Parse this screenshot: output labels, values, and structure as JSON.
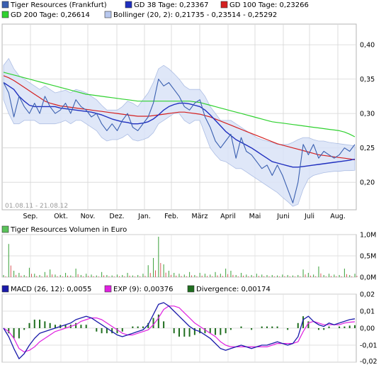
{
  "chart_data": [
    {
      "type": "line",
      "legend": [
        {
          "label": "Tiger Resources (Frankfurt)",
          "color": "#3a5fb0"
        },
        {
          "label": "GD 38 Tage: 0,23367",
          "color": "#1f2fbf"
        },
        {
          "label": "GD 100 Tage: 0,23266",
          "color": "#d42020"
        },
        {
          "label": "GD 200 Tage: 0,26614",
          "color": "#2fd12f"
        },
        {
          "label": "Bollinger (20, 2): 0,21735 - 0,23514 - 0,25292",
          "color": "#b8c8ee"
        }
      ],
      "date_range": "01.08.11 - 21.08.12",
      "x_ticks": [
        "Sep.",
        "Okt.",
        "Nov.",
        "Dez.",
        "Jan.",
        "Feb.",
        "März",
        "April",
        "Mai",
        "Juni",
        "Juli",
        "Aug."
      ],
      "y_ticks": [
        "0,20",
        "0,25",
        "0,30",
        "0,35",
        "0,40"
      ],
      "ylim": [
        0.16,
        0.43
      ],
      "series": [
        {
          "name": "Tiger Resources (Frankfurt)",
          "color": "#3a5fb0",
          "values": [
            0.345,
            0.33,
            0.295,
            0.325,
            0.31,
            0.3,
            0.315,
            0.3,
            0.325,
            0.31,
            0.3,
            0.305,
            0.315,
            0.3,
            0.32,
            0.31,
            0.305,
            0.295,
            0.3,
            0.285,
            0.275,
            0.285,
            0.275,
            0.29,
            0.3,
            0.28,
            0.275,
            0.285,
            0.295,
            0.315,
            0.35,
            0.34,
            0.345,
            0.335,
            0.325,
            0.31,
            0.305,
            0.315,
            0.32,
            0.295,
            0.28,
            0.26,
            0.25,
            0.26,
            0.27,
            0.235,
            0.265,
            0.245,
            0.24,
            0.23,
            0.22,
            0.225,
            0.21,
            0.225,
            0.21,
            0.19,
            0.17,
            0.2,
            0.255,
            0.24,
            0.255,
            0.235,
            0.245,
            0.24,
            0.235,
            0.24,
            0.25,
            0.245,
            0.255
          ]
        },
        {
          "name": "GD 38 Tage",
          "color": "#1f2fbf",
          "values": [
            0.345,
            0.34,
            0.335,
            0.325,
            0.318,
            0.312,
            0.31,
            0.31,
            0.31,
            0.31,
            0.31,
            0.308,
            0.307,
            0.306,
            0.305,
            0.304,
            0.303,
            0.302,
            0.3,
            0.298,
            0.295,
            0.292,
            0.29,
            0.288,
            0.287,
            0.285,
            0.285,
            0.286,
            0.288,
            0.292,
            0.298,
            0.305,
            0.31,
            0.313,
            0.315,
            0.315,
            0.314,
            0.312,
            0.31,
            0.305,
            0.298,
            0.29,
            0.282,
            0.274,
            0.268,
            0.262,
            0.258,
            0.254,
            0.25,
            0.245,
            0.24,
            0.235,
            0.23,
            0.228,
            0.226,
            0.224,
            0.222,
            0.222,
            0.223,
            0.224,
            0.225,
            0.226,
            0.227,
            0.228,
            0.229,
            0.23,
            0.231,
            0.232,
            0.2337
          ]
        },
        {
          "name": "GD 100 Tage",
          "color": "#d42020",
          "values": [
            0.355,
            0.352,
            0.348,
            0.343,
            0.338,
            0.333,
            0.328,
            0.323,
            0.318,
            0.315,
            0.313,
            0.311,
            0.31,
            0.309,
            0.308,
            0.307,
            0.306,
            0.305,
            0.304,
            0.303,
            0.302,
            0.301,
            0.3,
            0.299,
            0.298,
            0.297,
            0.296,
            0.296,
            0.296,
            0.297,
            0.298,
            0.299,
            0.3,
            0.301,
            0.302,
            0.302,
            0.301,
            0.3,
            0.299,
            0.297,
            0.295,
            0.292,
            0.289,
            0.286,
            0.283,
            0.28,
            0.277,
            0.274,
            0.271,
            0.268,
            0.265,
            0.262,
            0.259,
            0.256,
            0.254,
            0.252,
            0.25,
            0.248,
            0.246,
            0.244,
            0.242,
            0.24,
            0.239,
            0.238,
            0.237,
            0.236,
            0.235,
            0.234,
            0.2327
          ]
        },
        {
          "name": "GD 200 Tage",
          "color": "#2fd12f",
          "values": [
            0.36,
            0.358,
            0.356,
            0.354,
            0.352,
            0.35,
            0.348,
            0.346,
            0.344,
            0.342,
            0.34,
            0.338,
            0.336,
            0.334,
            0.332,
            0.33,
            0.328,
            0.327,
            0.326,
            0.325,
            0.324,
            0.323,
            0.322,
            0.321,
            0.32,
            0.319,
            0.318,
            0.318,
            0.318,
            0.318,
            0.318,
            0.318,
            0.318,
            0.318,
            0.318,
            0.318,
            0.318,
            0.317,
            0.316,
            0.314,
            0.312,
            0.31,
            0.308,
            0.306,
            0.304,
            0.302,
            0.3,
            0.298,
            0.296,
            0.294,
            0.292,
            0.29,
            0.288,
            0.287,
            0.286,
            0.285,
            0.284,
            0.283,
            0.282,
            0.281,
            0.28,
            0.279,
            0.278,
            0.277,
            0.276,
            0.275,
            0.273,
            0.27,
            0.2661
          ]
        },
        {
          "name": "Bollinger upper",
          "color": "#b8c8ee",
          "values": [
            0.37,
            0.38,
            0.365,
            0.355,
            0.35,
            0.345,
            0.34,
            0.335,
            0.34,
            0.335,
            0.33,
            0.332,
            0.334,
            0.33,
            0.335,
            0.333,
            0.33,
            0.325,
            0.32,
            0.312,
            0.305,
            0.305,
            0.305,
            0.31,
            0.318,
            0.315,
            0.31,
            0.32,
            0.33,
            0.345,
            0.365,
            0.37,
            0.365,
            0.358,
            0.35,
            0.34,
            0.335,
            0.335,
            0.335,
            0.325,
            0.31,
            0.3,
            0.29,
            0.29,
            0.29,
            0.285,
            0.28,
            0.275,
            0.27,
            0.265,
            0.262,
            0.26,
            0.258,
            0.255,
            0.255,
            0.255,
            0.258,
            0.262,
            0.265,
            0.265,
            0.262,
            0.26,
            0.26,
            0.258,
            0.257,
            0.256,
            0.255,
            0.254,
            0.2529
          ]
        },
        {
          "name": "Bollinger lower",
          "color": "#b8c8ee",
          "values": [
            0.32,
            0.3,
            0.285,
            0.285,
            0.29,
            0.29,
            0.29,
            0.285,
            0.285,
            0.285,
            0.285,
            0.287,
            0.29,
            0.285,
            0.29,
            0.29,
            0.285,
            0.28,
            0.275,
            0.265,
            0.26,
            0.262,
            0.262,
            0.265,
            0.27,
            0.262,
            0.26,
            0.262,
            0.265,
            0.272,
            0.285,
            0.29,
            0.295,
            0.3,
            0.3,
            0.29,
            0.285,
            0.29,
            0.29,
            0.27,
            0.25,
            0.24,
            0.232,
            0.23,
            0.225,
            0.22,
            0.22,
            0.215,
            0.21,
            0.205,
            0.2,
            0.195,
            0.19,
            0.185,
            0.178,
            0.172,
            0.165,
            0.168,
            0.19,
            0.205,
            0.21,
            0.212,
            0.214,
            0.215,
            0.216,
            0.216,
            0.217,
            0.217,
            0.2174
          ]
        }
      ]
    },
    {
      "type": "bar",
      "legend": [
        {
          "label": "Tiger Resources Volumen in Euro",
          "color": "#5ac25a"
        }
      ],
      "y_ticks": [
        "0,0M",
        "0,5M",
        "1,0M"
      ],
      "ylim": [
        0,
        1.0
      ],
      "values": [
        0.05,
        0.78,
        0.15,
        0.1,
        0.05,
        0.22,
        0.08,
        0.05,
        0.12,
        0.18,
        0.06,
        0.05,
        0.1,
        0.04,
        0.2,
        0.05,
        0.08,
        0.06,
        0.04,
        0.12,
        0.05,
        0.04,
        0.06,
        0.05,
        0.1,
        0.04,
        0.05,
        0.08,
        0.28,
        0.45,
        0.95,
        0.3,
        0.15,
        0.1,
        0.08,
        0.06,
        0.12,
        0.05,
        0.1,
        0.08,
        0.06,
        0.12,
        0.08,
        0.2,
        0.15,
        0.05,
        0.1,
        0.06,
        0.05,
        0.08,
        0.06,
        0.05,
        0.05,
        0.04,
        0.06,
        0.05,
        0.04,
        0.05,
        0.18,
        0.1,
        0.06,
        0.25,
        0.05,
        0.08,
        0.06,
        0.05,
        0.2,
        0.05,
        0.08
      ]
    },
    {
      "type": "line",
      "legend": [
        {
          "label": "MACD (26, 12): 0,0055",
          "color": "#1a1aaa"
        },
        {
          "label": "EXP (9): 0,00376",
          "color": "#e020e0"
        },
        {
          "label": "Divergence: 0,00174",
          "color": "#1f6e1f"
        }
      ],
      "y_ticks": [
        "-0,02",
        "-0,01",
        "0,00",
        "0,01",
        "0,02"
      ],
      "ylim": [
        -0.02,
        0.02
      ],
      "series": [
        {
          "name": "MACD",
          "color": "#1a1aaa",
          "values": [
            0.0,
            -0.005,
            -0.012,
            -0.018,
            -0.015,
            -0.01,
            -0.006,
            -0.003,
            -0.002,
            -0.001,
            0.0,
            0.001,
            0.002,
            0.003,
            0.005,
            0.006,
            0.007,
            0.006,
            0.004,
            0.002,
            0.0,
            -0.002,
            -0.004,
            -0.005,
            -0.004,
            -0.003,
            -0.002,
            -0.001,
            0.002,
            0.008,
            0.014,
            0.015,
            0.013,
            0.01,
            0.007,
            0.004,
            0.001,
            -0.001,
            -0.002,
            -0.004,
            -0.006,
            -0.009,
            -0.012,
            -0.013,
            -0.012,
            -0.011,
            -0.01,
            -0.011,
            -0.012,
            -0.011,
            -0.01,
            -0.01,
            -0.009,
            -0.008,
            -0.009,
            -0.01,
            -0.009,
            -0.005,
            0.005,
            0.007,
            0.004,
            0.002,
            0.001,
            0.003,
            0.002,
            0.003,
            0.004,
            0.005,
            0.0055
          ]
        },
        {
          "name": "EXP",
          "color": "#e020e0",
          "values": [
            0.0,
            -0.002,
            -0.006,
            -0.012,
            -0.014,
            -0.013,
            -0.011,
            -0.008,
            -0.006,
            -0.004,
            -0.002,
            -0.001,
            0.0,
            0.001,
            0.002,
            0.004,
            0.005,
            0.006,
            0.006,
            0.005,
            0.003,
            0.001,
            -0.001,
            -0.003,
            -0.004,
            -0.004,
            -0.003,
            -0.002,
            -0.001,
            0.002,
            0.006,
            0.011,
            0.013,
            0.013,
            0.012,
            0.009,
            0.006,
            0.003,
            0.001,
            -0.001,
            -0.003,
            -0.005,
            -0.008,
            -0.01,
            -0.011,
            -0.011,
            -0.011,
            -0.011,
            -0.011,
            -0.011,
            -0.011,
            -0.011,
            -0.01,
            -0.009,
            -0.009,
            -0.009,
            -0.009,
            -0.008,
            -0.002,
            0.003,
            0.004,
            0.003,
            0.002,
            0.002,
            0.002,
            0.002,
            0.003,
            0.0035,
            0.00376
          ]
        },
        {
          "name": "Divergence",
          "color": "#1f6e1f",
          "values": [
            0.0,
            -0.003,
            -0.006,
            -0.006,
            -0.001,
            0.003,
            0.005,
            0.005,
            0.004,
            0.003,
            0.002,
            0.002,
            0.002,
            0.002,
            0.003,
            0.002,
            0.002,
            0.0,
            -0.002,
            -0.003,
            -0.003,
            -0.003,
            -0.003,
            -0.002,
            0.0,
            0.001,
            0.001,
            0.001,
            0.003,
            0.006,
            0.008,
            0.004,
            0.0,
            -0.003,
            -0.005,
            -0.005,
            -0.005,
            -0.004,
            -0.003,
            -0.003,
            -0.003,
            -0.004,
            -0.004,
            -0.003,
            -0.001,
            0.0,
            0.001,
            0.0,
            -0.001,
            0.0,
            0.001,
            0.001,
            0.001,
            0.001,
            0.0,
            -0.001,
            0.0,
            0.003,
            0.007,
            0.004,
            0.0,
            -0.001,
            -0.001,
            0.001,
            0.0,
            0.001,
            0.001,
            0.0015,
            0.00174
          ]
        }
      ]
    }
  ]
}
